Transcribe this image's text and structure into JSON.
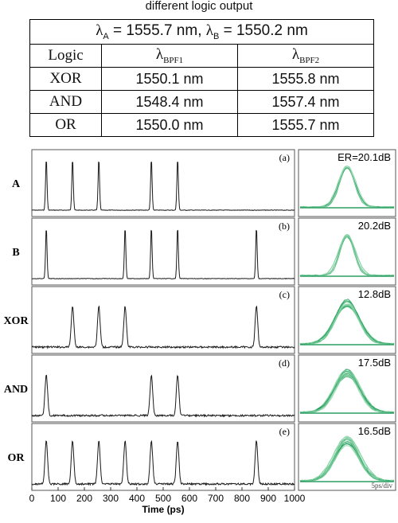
{
  "caption": "different logic output",
  "table": {
    "lambda_a_label": "λ",
    "lambda_a_sub": "A",
    "lambda_a_value": " = 1555.7 nm, ",
    "lambda_b_label": "λ",
    "lambda_b_sub": "B",
    "lambda_b_value": " = 1550.2 nm",
    "col_logic": "Logic",
    "col_bpf1_sym": "λ",
    "col_bpf1_sub": "BPF1",
    "col_bpf2_sym": "λ",
    "col_bpf2_sub": "BPF2",
    "rows": [
      {
        "logic": "XOR",
        "bpf1": "1550.1 nm",
        "bpf2": "1555.8 nm"
      },
      {
        "logic": "AND",
        "bpf1": "1548.4 nm",
        "bpf2": "1557.4 nm"
      },
      {
        "logic": "OR",
        "bpf1": "1550.0 nm",
        "bpf2": "1555.7 nm"
      }
    ]
  },
  "chart_data": {
    "type": "line",
    "xlabel": "Time (ps)",
    "xlim": [
      0,
      1000
    ],
    "x_ticks": [
      "0",
      "100",
      "200",
      "300",
      "400",
      "500",
      "600",
      "700",
      "800",
      "900",
      "1000"
    ],
    "panels": [
      {
        "label": "A",
        "tag": "(a)",
        "pulses": [
          55,
          155,
          255,
          455,
          555
        ],
        "amplitude": 1.0,
        "er": "ER=20.1dB"
      },
      {
        "label": "B",
        "tag": "(b)",
        "pulses": [
          55,
          355,
          455,
          555,
          855
        ],
        "amplitude": 1.0,
        "er": "20.2dB"
      },
      {
        "label": "XOR",
        "tag": "(c)",
        "pulses": [
          155,
          255,
          355,
          855
        ],
        "amplitude": 0.8,
        "er": "12.8dB"
      },
      {
        "label": "AND",
        "tag": "(d)",
        "pulses": [
          55,
          455,
          555
        ],
        "amplitude": 0.8,
        "er": "17.5dB"
      },
      {
        "label": "OR",
        "tag": "(e)",
        "pulses": [
          55,
          155,
          255,
          355,
          455,
          555,
          855
        ],
        "amplitude": 0.85,
        "er": "16.5dB"
      }
    ],
    "eye_scale": "5ps/div",
    "colors": {
      "trace": "#1a1a1a",
      "eye": "#1f9a5a",
      "eye_light": "#7fcf9f"
    }
  }
}
